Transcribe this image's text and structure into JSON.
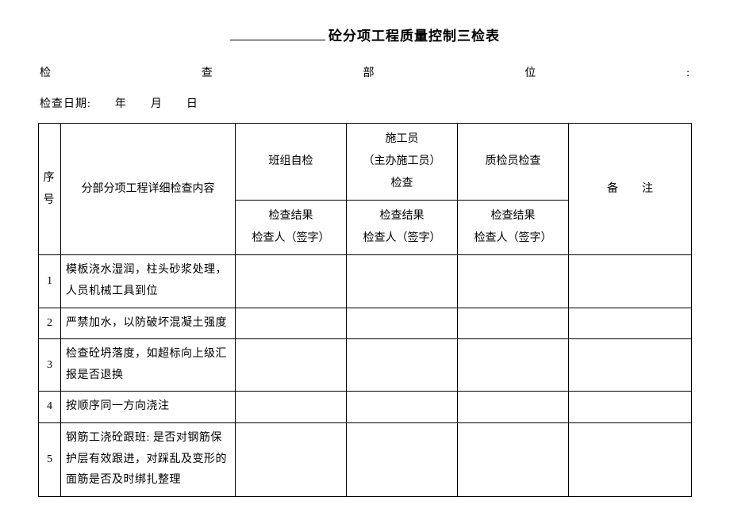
{
  "title_suffix": "砼分项工程质量控制三检表",
  "meta1": {
    "a": "检",
    "b": "查",
    "c": "部",
    "d": "位",
    "e": ":"
  },
  "meta2": "检查日期:　　年　　月　　日",
  "header": {
    "seq_line1": "序",
    "seq_line2": "号",
    "content": "分部分项工程详细检查内容",
    "c1_line1": "班组自检",
    "c2_line1": "施工员",
    "c2_line2": "（主办施工员）",
    "c2_line3": "检查",
    "c3_line1": "质检员检查",
    "sub_line1": "检查结果",
    "sub_line2": "检查人（签字）",
    "remark": "备注"
  },
  "rows": [
    {
      "n": "1",
      "txt": "模板浇水湿润，柱头砂浆处理，人员机械工具到位"
    },
    {
      "n": "2",
      "txt": "严禁加水，以防破坏混凝土强度"
    },
    {
      "n": "3",
      "txt": "检查砼坍落度，如超标向上级汇报是否退换"
    },
    {
      "n": "4",
      "txt": "按顺序同一方向浇注"
    },
    {
      "n": "5",
      "txt": "钢筋工浇砼跟班: 是否对钢筋保护层有效跟进，对踩乱及变形的面筋是否及时绑扎整理"
    }
  ]
}
